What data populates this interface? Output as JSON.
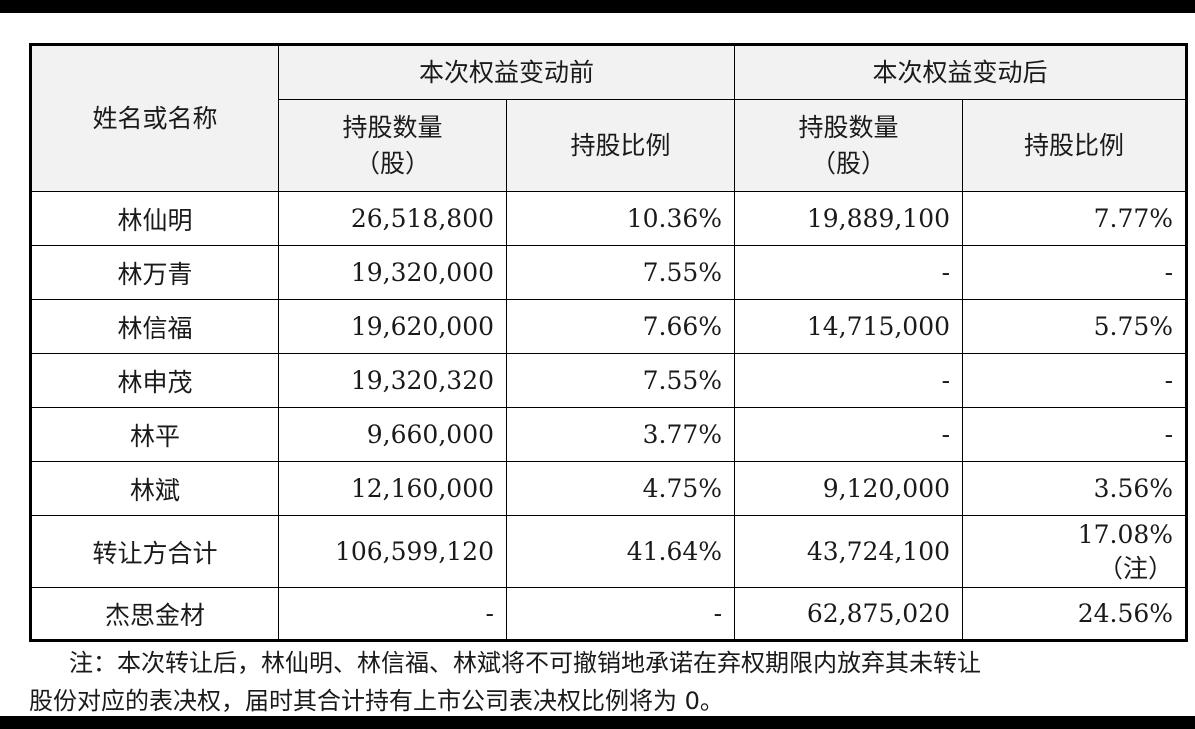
{
  "table": {
    "header_name": "姓名或名称",
    "group_before": "本次权益变动前",
    "group_after": "本次权益变动后",
    "col_shares": [
      "持股数量",
      "（股）"
    ],
    "col_ratio": "持股比例",
    "rows": [
      {
        "name": "林仙明",
        "before_shares": "26,518,800",
        "before_ratio": "10.36%",
        "after_shares": "19,889,100",
        "after_ratio": "7.77%"
      },
      {
        "name": "林万青",
        "before_shares": "19,320,000",
        "before_ratio": "7.55%",
        "after_shares": "-",
        "after_ratio": "-"
      },
      {
        "name": "林信福",
        "before_shares": "19,620,000",
        "before_ratio": "7.66%",
        "after_shares": "14,715,000",
        "after_ratio": "5.75%"
      },
      {
        "name": "林申茂",
        "before_shares": "19,320,320",
        "before_ratio": "7.55%",
        "after_shares": "-",
        "after_ratio": "-"
      },
      {
        "name": "林平",
        "before_shares": "9,660,000",
        "before_ratio": "3.77%",
        "after_shares": "-",
        "after_ratio": "-"
      },
      {
        "name": "林斌",
        "before_shares": "12,160,000",
        "before_ratio": "4.75%",
        "after_shares": "9,120,000",
        "after_ratio": "3.56%"
      }
    ],
    "subtotal": {
      "name": "转让方合计",
      "before_shares": "106,599,120",
      "before_ratio": "41.64%",
      "after_shares": "43,724,100",
      "after_ratio": "17.08%",
      "after_ratio_note": "（注）"
    },
    "buyer": {
      "name": "杰思金材",
      "before_shares": "-",
      "before_ratio": "-",
      "after_shares": "62,875,020",
      "after_ratio": "24.56%"
    }
  },
  "note": {
    "line1": "注：本次转让后，林仙明、林信福、林斌将不可撤销地承诺在弃权期限内放弃其未转让",
    "line2": "股份对应的表决权，届时其合计持有上市公司表决权比例将为 0。"
  }
}
